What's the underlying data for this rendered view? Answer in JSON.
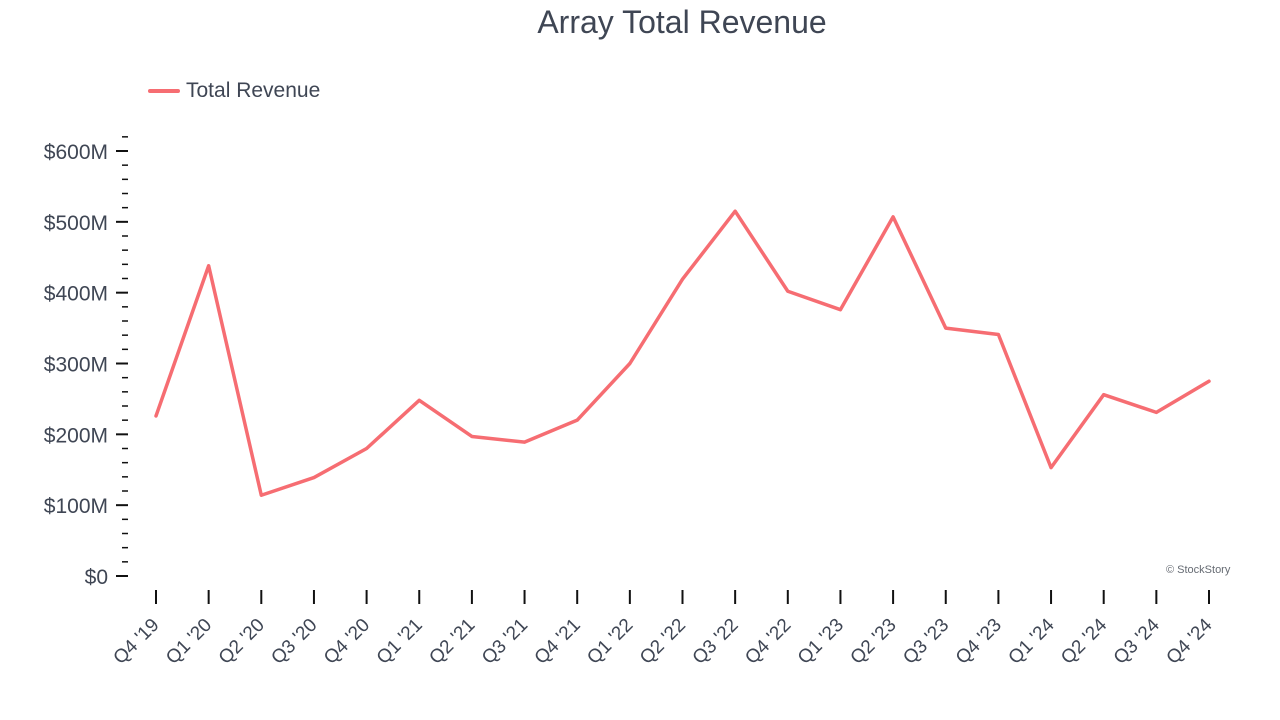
{
  "chart_data": {
    "type": "line",
    "title": "Array Total Revenue",
    "xlabel": "",
    "ylabel": "",
    "categories": [
      "Q4 '19",
      "Q1 '20",
      "Q2 '20",
      "Q3 '20",
      "Q4 '20",
      "Q1 '21",
      "Q2 '21",
      "Q3 '21",
      "Q4 '21",
      "Q1 '22",
      "Q2 '22",
      "Q3 '22",
      "Q4 '22",
      "Q1 '23",
      "Q2 '23",
      "Q3 '23",
      "Q4 '23",
      "Q1 '24",
      "Q2 '24",
      "Q3 '24",
      "Q4 '24"
    ],
    "series": [
      {
        "name": "Total Revenue",
        "color": "#f66d72",
        "values": [
          226,
          438,
          114,
          139,
          180,
          248,
          197,
          189,
          220,
          300,
          419,
          515,
          402,
          376,
          507,
          350,
          341,
          153,
          256,
          231,
          275
        ]
      }
    ],
    "ylim": [
      0,
      620
    ],
    "yticks": [
      0,
      100,
      200,
      300,
      400,
      500,
      600
    ],
    "ytick_labels": [
      "$0",
      "$100M",
      "$200M",
      "$300M",
      "$400M",
      "$500M",
      "$600M"
    ],
    "legend_position": "top-left",
    "grid": false
  },
  "watermark": "© StockStory"
}
